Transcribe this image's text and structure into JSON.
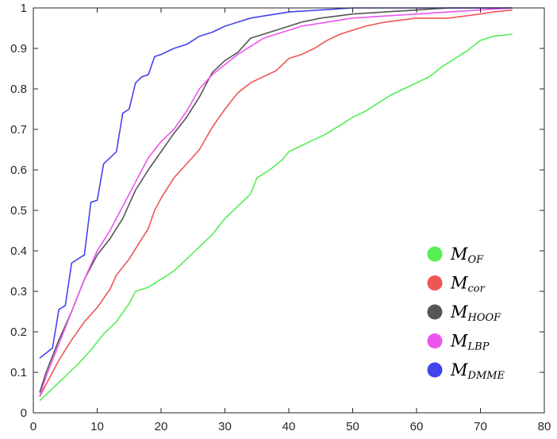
{
  "chart_data": {
    "type": "line",
    "title": "",
    "xlabel": "",
    "ylabel": "",
    "xlim": [
      0,
      80
    ],
    "ylim": [
      0,
      1
    ],
    "xticks": [
      0,
      10,
      20,
      30,
      40,
      50,
      60,
      70,
      80
    ],
    "yticks": [
      0,
      0.1,
      0.2,
      0.3,
      0.4,
      0.5,
      0.6,
      0.7,
      0.8,
      0.9,
      1
    ],
    "x_tick_labels": [
      "0",
      "10",
      "20",
      "30",
      "40",
      "50",
      "60",
      "70",
      "80"
    ],
    "y_tick_labels": [
      "0",
      "0.1",
      "0.2",
      "0.3",
      "0.4",
      "0.5",
      "0.6",
      "0.7",
      "0.8",
      "0.9",
      "1"
    ],
    "grid": false,
    "legend_position": "bottom-right",
    "series": [
      {
        "name": "OF",
        "color": "#55ee55",
        "points": [
          [
            1,
            0.03
          ],
          [
            3,
            0.06
          ],
          [
            5,
            0.09
          ],
          [
            7,
            0.12
          ],
          [
            9,
            0.155
          ],
          [
            11,
            0.195
          ],
          [
            13,
            0.225
          ],
          [
            15,
            0.27
          ],
          [
            16,
            0.3
          ],
          [
            18,
            0.31
          ],
          [
            20,
            0.33
          ],
          [
            22,
            0.35
          ],
          [
            24,
            0.38
          ],
          [
            26,
            0.41
          ],
          [
            28,
            0.44
          ],
          [
            30,
            0.48
          ],
          [
            32,
            0.51
          ],
          [
            34,
            0.54
          ],
          [
            35,
            0.58
          ],
          [
            37,
            0.6
          ],
          [
            39,
            0.625
          ],
          [
            40,
            0.645
          ],
          [
            42,
            0.66
          ],
          [
            44,
            0.675
          ],
          [
            46,
            0.69
          ],
          [
            48,
            0.71
          ],
          [
            50,
            0.73
          ],
          [
            52,
            0.745
          ],
          [
            54,
            0.765
          ],
          [
            56,
            0.785
          ],
          [
            58,
            0.8
          ],
          [
            60,
            0.815
          ],
          [
            62,
            0.83
          ],
          [
            64,
            0.855
          ],
          [
            66,
            0.875
          ],
          [
            68,
            0.895
          ],
          [
            70,
            0.92
          ],
          [
            72,
            0.93
          ],
          [
            75,
            0.935
          ]
        ]
      },
      {
        "name": "cor",
        "color": "#ee5555",
        "points": [
          [
            1,
            0.04
          ],
          [
            2,
            0.07
          ],
          [
            4,
            0.13
          ],
          [
            6,
            0.18
          ],
          [
            8,
            0.225
          ],
          [
            10,
            0.26
          ],
          [
            12,
            0.305
          ],
          [
            13,
            0.34
          ],
          [
            15,
            0.38
          ],
          [
            17,
            0.43
          ],
          [
            18,
            0.455
          ],
          [
            19,
            0.5
          ],
          [
            20,
            0.53
          ],
          [
            22,
            0.58
          ],
          [
            24,
            0.615
          ],
          [
            26,
            0.65
          ],
          [
            28,
            0.705
          ],
          [
            30,
            0.75
          ],
          [
            32,
            0.79
          ],
          [
            34,
            0.815
          ],
          [
            36,
            0.83
          ],
          [
            38,
            0.845
          ],
          [
            40,
            0.875
          ],
          [
            42,
            0.885
          ],
          [
            44,
            0.9
          ],
          [
            46,
            0.92
          ],
          [
            48,
            0.935
          ],
          [
            50,
            0.945
          ],
          [
            52,
            0.955
          ],
          [
            55,
            0.965
          ],
          [
            60,
            0.975
          ],
          [
            65,
            0.975
          ],
          [
            70,
            0.985
          ],
          [
            72,
            0.99
          ],
          [
            75,
            0.995
          ]
        ]
      },
      {
        "name": "HOOF",
        "color": "#555555",
        "points": [
          [
            1,
            0.05
          ],
          [
            2,
            0.1
          ],
          [
            4,
            0.18
          ],
          [
            6,
            0.25
          ],
          [
            8,
            0.33
          ],
          [
            10,
            0.39
          ],
          [
            12,
            0.43
          ],
          [
            14,
            0.48
          ],
          [
            16,
            0.55
          ],
          [
            18,
            0.6
          ],
          [
            20,
            0.645
          ],
          [
            22,
            0.69
          ],
          [
            24,
            0.73
          ],
          [
            26,
            0.78
          ],
          [
            28,
            0.84
          ],
          [
            30,
            0.87
          ],
          [
            32,
            0.89
          ],
          [
            34,
            0.925
          ],
          [
            36,
            0.935
          ],
          [
            38,
            0.945
          ],
          [
            40,
            0.955
          ],
          [
            42,
            0.965
          ],
          [
            45,
            0.975
          ],
          [
            50,
            0.985
          ],
          [
            55,
            0.99
          ],
          [
            60,
            0.995
          ],
          [
            65,
            1
          ],
          [
            75,
            1
          ]
        ]
      },
      {
        "name": "LBP",
        "color": "#ee55ee",
        "points": [
          [
            1,
            0.04
          ],
          [
            2,
            0.09
          ],
          [
            4,
            0.17
          ],
          [
            6,
            0.25
          ],
          [
            8,
            0.33
          ],
          [
            10,
            0.4
          ],
          [
            12,
            0.45
          ],
          [
            14,
            0.51
          ],
          [
            16,
            0.57
          ],
          [
            18,
            0.63
          ],
          [
            20,
            0.67
          ],
          [
            22,
            0.7
          ],
          [
            24,
            0.745
          ],
          [
            26,
            0.8
          ],
          [
            28,
            0.835
          ],
          [
            30,
            0.86
          ],
          [
            32,
            0.885
          ],
          [
            34,
            0.905
          ],
          [
            36,
            0.925
          ],
          [
            38,
            0.935
          ],
          [
            40,
            0.945
          ],
          [
            42,
            0.955
          ],
          [
            44,
            0.96
          ],
          [
            46,
            0.965
          ],
          [
            48,
            0.97
          ],
          [
            50,
            0.975
          ],
          [
            55,
            0.98
          ],
          [
            60,
            0.985
          ],
          [
            65,
            0.99
          ],
          [
            70,
            0.995
          ],
          [
            75,
            1
          ]
        ]
      },
      {
        "name": "DMME",
        "color": "#4444ee",
        "points": [
          [
            1,
            0.135
          ],
          [
            3,
            0.16
          ],
          [
            4,
            0.255
          ],
          [
            5,
            0.265
          ],
          [
            6,
            0.37
          ],
          [
            7,
            0.38
          ],
          [
            8,
            0.39
          ],
          [
            9,
            0.52
          ],
          [
            10,
            0.525
          ],
          [
            11,
            0.615
          ],
          [
            13,
            0.645
          ],
          [
            14,
            0.74
          ],
          [
            15,
            0.75
          ],
          [
            16,
            0.815
          ],
          [
            17,
            0.83
          ],
          [
            18,
            0.835
          ],
          [
            19,
            0.88
          ],
          [
            20,
            0.885
          ],
          [
            22,
            0.9
          ],
          [
            24,
            0.91
          ],
          [
            26,
            0.93
          ],
          [
            28,
            0.94
          ],
          [
            30,
            0.955
          ],
          [
            32,
            0.965
          ],
          [
            34,
            0.975
          ],
          [
            36,
            0.98
          ],
          [
            38,
            0.985
          ],
          [
            40,
            0.99
          ],
          [
            45,
            0.995
          ],
          [
            50,
            1
          ],
          [
            75,
            1
          ]
        ]
      }
    ]
  }
}
